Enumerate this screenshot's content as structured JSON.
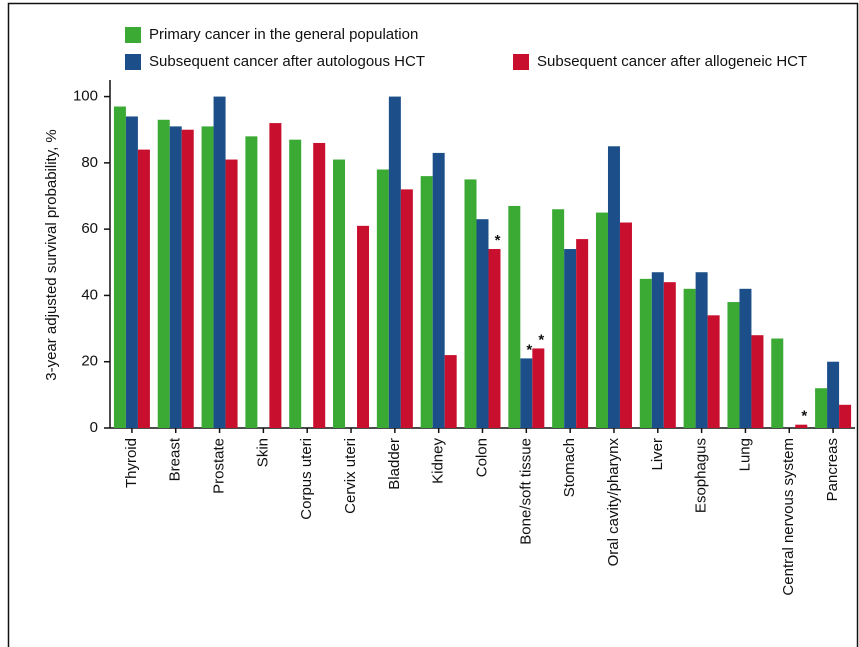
{
  "chart_data": {
    "type": "bar",
    "y_label": "3-year adjusted survival probability, %",
    "categories": [
      "Thyroid",
      "Breast",
      "Prostate",
      "Skin",
      "Corpus uteri",
      "Cervix uteri",
      "Bladder",
      "Kidney",
      "Colon",
      "Bone/soft tissue",
      "Stomach",
      "Oral cavity/pharynx",
      "Liver",
      "Esophagus",
      "Lung",
      "Central nervous system",
      "Pancreas"
    ],
    "series": [
      {
        "name": "Primary cancer in the general population",
        "color": "#3aaa35",
        "values": [
          97,
          93,
          91,
          88,
          87,
          81,
          78,
          76,
          75,
          67,
          66,
          65,
          45,
          42,
          38,
          27,
          12
        ]
      },
      {
        "name": "Subsequent cancer after autologous HCT",
        "color": "#1c4f8a",
        "values": [
          94,
          91,
          100,
          null,
          null,
          null,
          100,
          83,
          63,
          21,
          54,
          85,
          47,
          47,
          42,
          null,
          20
        ],
        "annotations": [
          null,
          null,
          null,
          null,
          null,
          null,
          null,
          null,
          null,
          "*",
          null,
          null,
          null,
          null,
          null,
          null,
          null
        ]
      },
      {
        "name": "Subsequent cancer after allogeneic HCT",
        "color": "#c8102e",
        "values": [
          84,
          90,
          81,
          92,
          86,
          61,
          72,
          22,
          54,
          24,
          57,
          62,
          44,
          34,
          28,
          1,
          7
        ],
        "annotations": [
          null,
          null,
          null,
          null,
          null,
          null,
          null,
          null,
          "*",
          "*",
          null,
          null,
          null,
          null,
          null,
          "*",
          null
        ]
      }
    ],
    "ylim": [
      0,
      105
    ],
    "yticks": [
      0,
      20,
      40,
      60,
      80,
      100
    ]
  }
}
